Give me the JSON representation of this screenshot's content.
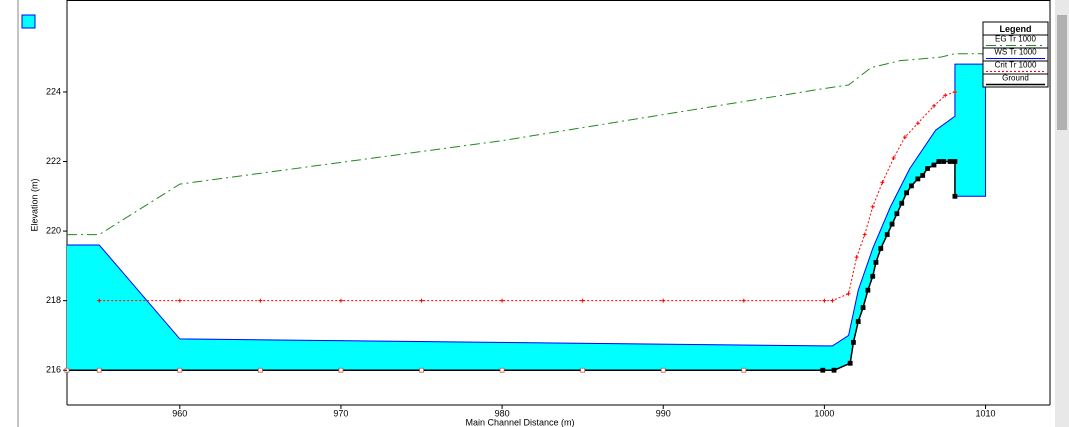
{
  "chart_data": {
    "type": "line",
    "x_label": "Main Channel Distance (m)",
    "y_label": "Elevation (m)",
    "legend_title": "Legend",
    "legend_position": "upper right",
    "xlim": [
      953,
      1014
    ],
    "ylim": [
      215,
      226.5
    ],
    "xticks": [
      960,
      970,
      980,
      990,
      1000,
      1010
    ],
    "yticks": [
      216,
      218,
      220,
      222,
      224
    ],
    "fill_color": "#00ffff",
    "series": [
      {
        "name": "EG  Tr 1000",
        "color": "#1f8a1f",
        "x": [
          953,
          955,
          960,
          980,
          1000,
          1001.5,
          1002.9,
          1004.7,
          1007.2,
          1008.1,
          1010
        ],
        "values": [
          219.9,
          219.9,
          221.35,
          222.6,
          224.1,
          224.2,
          224.7,
          224.9,
          225.0,
          225.1,
          225.1
        ]
      },
      {
        "name": "WS  Tr 1000",
        "color": "#0000ff",
        "x": [
          953,
          955,
          960,
          1000,
          1000.5,
          1001.5,
          1002.1,
          1003.0,
          1004.1,
          1005.3,
          1006.9,
          1008.1,
          1008.1,
          1010,
          1010,
          1008.1
        ],
        "values": [
          219.6,
          219.6,
          216.9,
          216.7,
          216.7,
          217.0,
          218.3,
          219.5,
          220.7,
          221.8,
          222.9,
          223.3,
          224.8,
          224.8,
          221.0,
          221.0
        ]
      },
      {
        "name": "Crit  Tr 1000",
        "color": "#ff0000",
        "x": [
          955,
          960,
          965,
          970,
          975,
          980,
          985,
          990,
          995,
          1000,
          1000.5,
          1001.5,
          1002,
          1002.5,
          1003,
          1003.6,
          1004.3,
          1005,
          1005.8,
          1006.8,
          1007.5,
          1008.1
        ],
        "values": [
          218.0,
          218.0,
          218.0,
          218.0,
          218.0,
          218.0,
          218.0,
          218.0,
          218.0,
          218.0,
          218.0,
          218.2,
          219.25,
          219.9,
          220.7,
          221.4,
          222.1,
          222.7,
          223.1,
          223.6,
          223.9,
          224.0
        ]
      },
      {
        "name": "Ground",
        "color": "#000000",
        "x": [
          953,
          955,
          960,
          965,
          970,
          975,
          980,
          985,
          990,
          995,
          999.9,
          1000.6,
          1001.6,
          1001.8,
          1002.1,
          1002.4,
          1002.7,
          1003.0,
          1003.2,
          1003.5,
          1003.9,
          1004.2,
          1004.5,
          1004.8,
          1005.1,
          1005.4,
          1005.8,
          1006.1,
          1006.4,
          1006.8,
          1007.1,
          1007.4,
          1007.8,
          1008.1,
          1008.1
        ],
        "values": [
          216,
          216,
          216,
          216,
          216,
          216,
          216,
          216,
          216,
          216,
          216,
          216,
          216.2,
          216.8,
          217.4,
          217.8,
          218.3,
          218.7,
          219.1,
          219.5,
          219.9,
          220.2,
          220.5,
          220.8,
          221.1,
          221.3,
          221.5,
          221.6,
          221.8,
          221.9,
          222.0,
          222.0,
          222.0,
          222.0,
          221.0
        ]
      }
    ]
  }
}
